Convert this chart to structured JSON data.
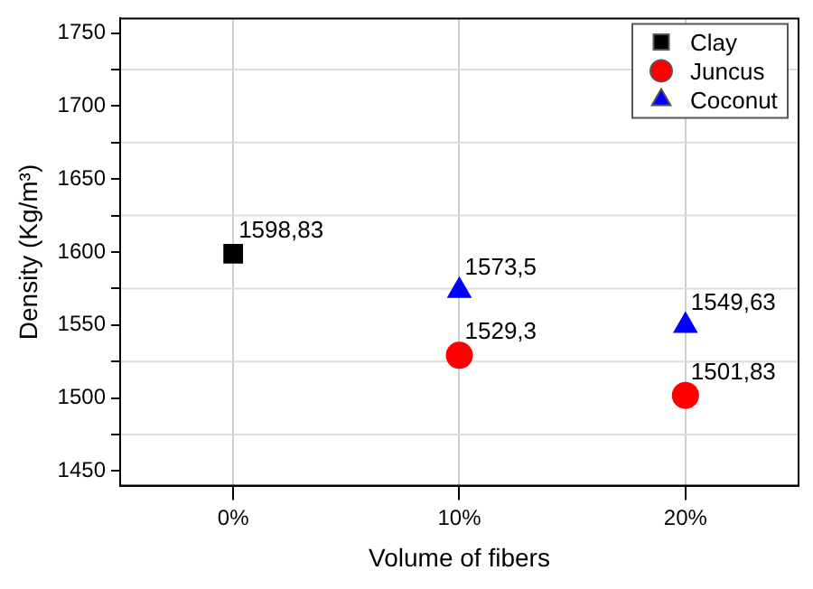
{
  "chart_data": {
    "type": "scatter",
    "xlabel": "Volume of fibers",
    "ylabel": "Density (Kg/m³)",
    "categories": [
      "0%",
      "10%",
      "20%"
    ],
    "ylim": [
      1440,
      1760
    ],
    "yticks": [
      1450,
      {
        "value": 1475,
        "label": null
      },
      1500,
      {
        "value": 1525,
        "label": null
      },
      1550,
      {
        "value": 1575,
        "label": null
      },
      1600,
      {
        "value": 1625,
        "label": null
      },
      1650,
      {
        "value": 1675,
        "label": null
      },
      1700,
      {
        "value": 1725,
        "label": null
      },
      1750
    ],
    "grid": true,
    "legend": "top right",
    "series": [
      {
        "name": "Clay",
        "color": "#000000",
        "marker": "square",
        "values": [
          1598.83,
          null,
          null
        ],
        "value_labels": [
          "1598,83",
          null,
          null
        ]
      },
      {
        "name": "Juncus",
        "color": "#ff0000",
        "marker": "circle",
        "values": [
          null,
          1529.3,
          1501.83
        ],
        "value_labels": [
          null,
          "1529,3",
          "1501,83"
        ]
      },
      {
        "name": "Coconut",
        "color": "#0000ff",
        "marker": "triangle",
        "values": [
          null,
          1573.5,
          1549.63
        ],
        "value_labels": [
          null,
          "1573,5",
          "1549,63"
        ]
      }
    ]
  }
}
